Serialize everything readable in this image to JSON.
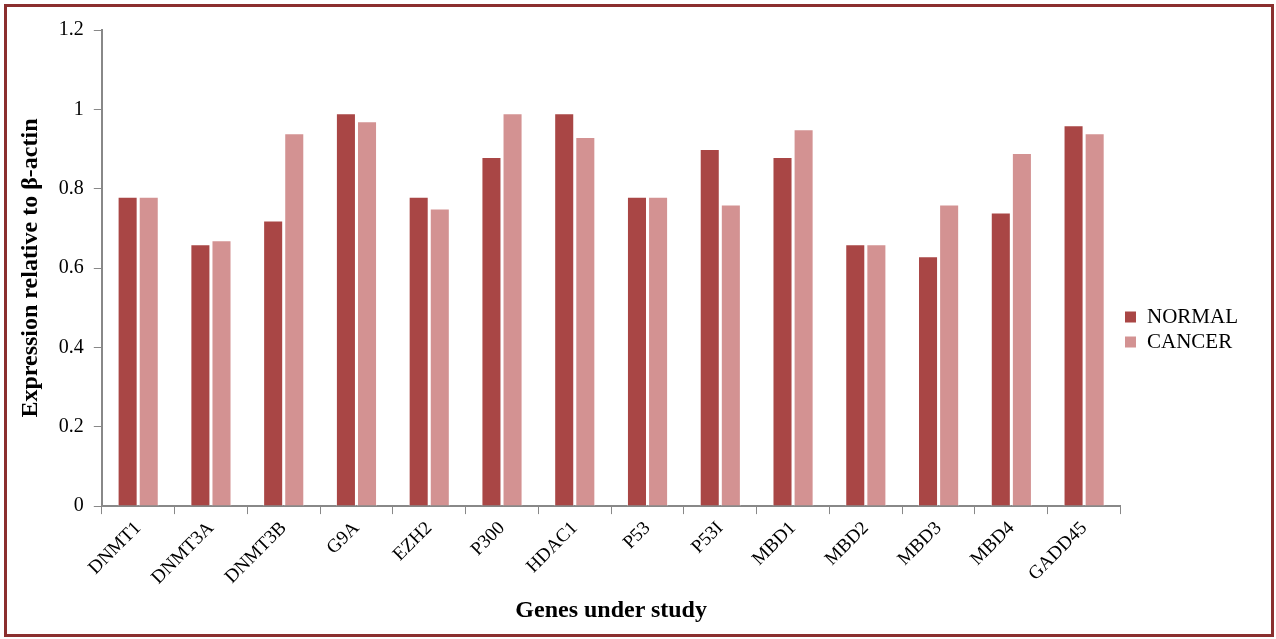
{
  "chart_data": {
    "type": "bar",
    "xlabel": "Genes under study",
    "ylabel": "Expression relative to β-actin",
    "categories": [
      "DNMT1",
      "DNMT3A",
      "DNMT3B",
      "G9A",
      "EZH2",
      "P300",
      "HDAC1",
      "P53",
      "P53I",
      "MBD1",
      "MBD2",
      "MBD3",
      "MBD4",
      "GADD45"
    ],
    "series": [
      {
        "name": "NORMAL",
        "color": "#a94645",
        "values": [
          0.78,
          0.66,
          0.72,
          0.99,
          0.78,
          0.88,
          0.99,
          0.78,
          0.9,
          0.88,
          0.66,
          0.63,
          0.74,
          0.96
        ]
      },
      {
        "name": "CANCER",
        "color": "#d39292",
        "values": [
          0.78,
          0.67,
          0.94,
          0.97,
          0.75,
          0.99,
          0.93,
          0.78,
          0.76,
          0.95,
          0.66,
          0.76,
          0.89,
          0.94
        ]
      }
    ],
    "ylim": [
      0,
      1.2
    ],
    "yticks": [
      0,
      0.2,
      0.4,
      0.6,
      0.8,
      1,
      1.2
    ],
    "grid": false,
    "legend": "right"
  }
}
